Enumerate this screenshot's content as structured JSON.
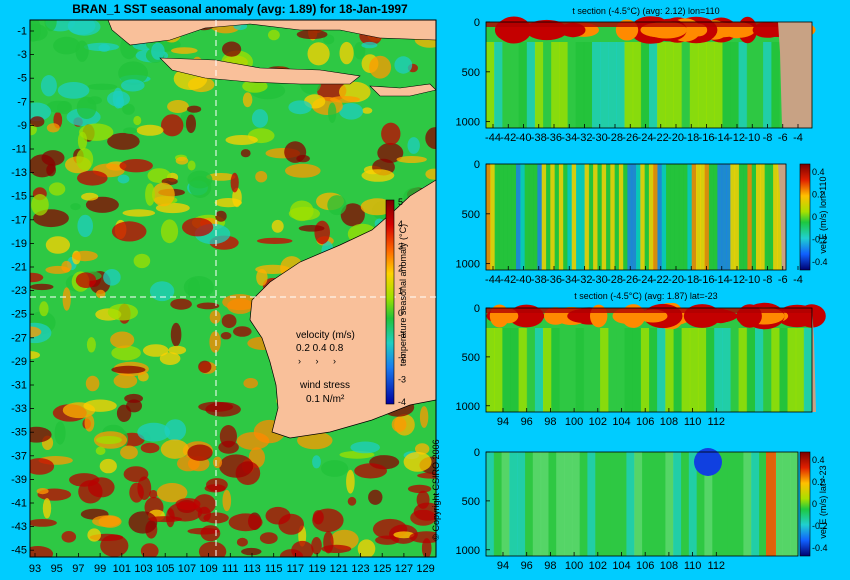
{
  "map": {
    "title": "BRAN_1 SST seasonal anomaly (avg: 1.89) for 18-Jan-1997",
    "y_ticks": [
      "-1",
      "-3",
      "-5",
      "-7",
      "-9",
      "-11",
      "-13",
      "-15",
      "-17",
      "-19",
      "-21",
      "-23",
      "-25",
      "-27",
      "-29",
      "-31",
      "-33",
      "-35",
      "-37",
      "-39",
      "-41",
      "-43",
      "-45"
    ],
    "x_ticks": [
      "93",
      "95",
      "97",
      "99",
      "101",
      "103",
      "105",
      "107",
      "109",
      "111",
      "113",
      "115",
      "117",
      "119",
      "121",
      "123",
      "125",
      "127",
      "129"
    ],
    "colorbar_ticks": [
      "5",
      "4",
      "3",
      "2",
      "1",
      "0",
      "-1",
      "-2",
      "-3",
      "-4"
    ],
    "colorbar_label": "temperature seasonal anomaly (°C)",
    "velocity_label": "velocity (m/s)",
    "velocity_scale": "0.2 0.4 0.8",
    "wind_label": "wind stress",
    "wind_scale": "0.1 N/m²",
    "copyright": "© Copyright CSIRO 2006",
    "section_lon": 110,
    "section_lat": -23,
    "colors": {
      "land": "#f9c09a",
      "ocean_base": "#29c94a",
      "warm": "#c40000",
      "cool": "#0a6ae8"
    }
  },
  "panels": [
    {
      "title": "t section (-4.5°C) (avg: 2.12) lon=110",
      "y_ticks": [
        "0",
        "500",
        "1000"
      ],
      "x_ticks": [
        "-44",
        "-42",
        "-40",
        "-38",
        "-36",
        "-34",
        "-32",
        "-30",
        "-28",
        "-26",
        "-24",
        "-22",
        "-20",
        "-18",
        "-16",
        "-14",
        "-12",
        "-10",
        "-8",
        "-6",
        "-4"
      ]
    },
    {
      "title": "",
      "y_ticks": [
        "0",
        "500",
        "1000"
      ],
      "x_ticks": [
        "-44",
        "-42",
        "-40",
        "-38",
        "-36",
        "-34",
        "-32",
        "-30",
        "-28",
        "-26",
        "-24",
        "-22",
        "-20",
        "-18",
        "-16",
        "-14",
        "-12",
        "-10",
        "-8",
        "-6",
        "-4"
      ],
      "colorbar_ticks": [
        "0.4",
        "0.2",
        "0",
        "-0.2",
        "-0.4"
      ],
      "colorbar_label": "vel E (m/s) lon=110"
    },
    {
      "title": "t section (-4.5°C) (avg: 1.87) lat=-23",
      "y_ticks": [
        "0",
        "500",
        "1000"
      ],
      "x_ticks": [
        "94",
        "96",
        "98",
        "100",
        "102",
        "104",
        "106",
        "108",
        "110",
        "112"
      ]
    },
    {
      "title": "",
      "y_ticks": [
        "0",
        "500",
        "1000"
      ],
      "x_ticks": [
        "94",
        "96",
        "98",
        "100",
        "102",
        "104",
        "106",
        "108",
        "110",
        "112"
      ],
      "colorbar_ticks": [
        "0.4",
        "0.2",
        "0",
        "-0.2",
        "-0.4"
      ],
      "colorbar_label": "vel E (m/s) lat=-23"
    }
  ],
  "chart_data": [
    {
      "type": "heatmap",
      "title": "BRAN_1 SST seasonal anomaly (avg: 1.89) for 18-Jan-1997",
      "x_range": [
        92.5,
        129.8
      ],
      "y_range": [
        -45,
        0
      ],
      "color_range": [
        -4,
        5
      ],
      "units": "°C"
    },
    {
      "type": "heatmap",
      "title": "t section (-4.5°C) (avg: 2.12) lon=110",
      "x_range": [
        -45,
        -2
      ],
      "y_range": [
        1050,
        0
      ]
    },
    {
      "type": "heatmap",
      "title": "",
      "x_range": [
        -45,
        -2
      ],
      "y_range": [
        1050,
        0
      ],
      "color_range": [
        -0.45,
        0.45
      ]
    },
    {
      "type": "heatmap",
      "title": "t section (-4.5°C) (avg: 1.87) lat=-23",
      "x_range": [
        92.8,
        114
      ],
      "y_range": [
        1050,
        0
      ]
    },
    {
      "type": "heatmap",
      "title": "",
      "x_range": [
        92.8,
        114
      ],
      "y_range": [
        1050,
        0
      ],
      "color_range": [
        -0.45,
        0.45
      ]
    }
  ]
}
